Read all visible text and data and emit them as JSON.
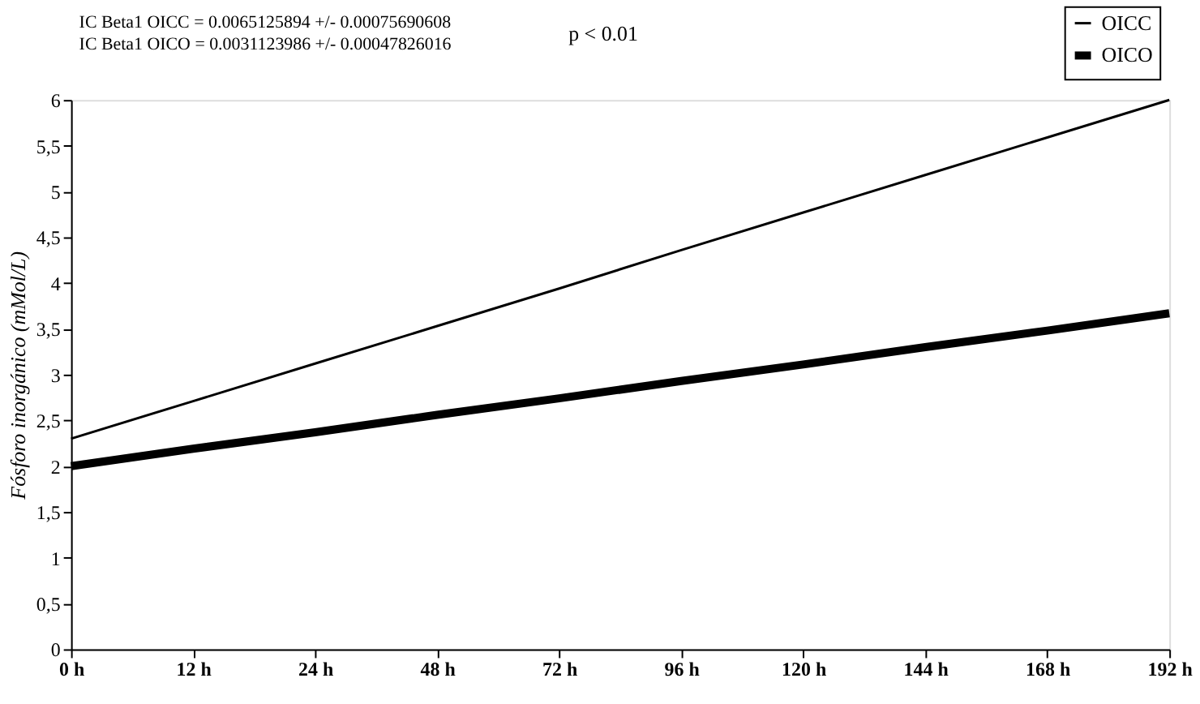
{
  "chart_data": {
    "type": "line",
    "categories": [
      "0 h",
      "12 h",
      "24 h",
      "48 h",
      "72 h",
      "96 h",
      "120 h",
      "144 h",
      "168 h",
      "192 h"
    ],
    "series": [
      {
        "name": "OICC",
        "color": "#000000",
        "values": [
          2.3,
          2.71,
          3.12,
          3.53,
          3.94,
          4.36,
          4.77,
          5.18,
          5.59,
          6.0
        ]
      },
      {
        "name": "OICO",
        "color": "#000000",
        "values": [
          2.0,
          2.19,
          2.37,
          2.56,
          2.74,
          2.93,
          3.11,
          3.3,
          3.48,
          3.67
        ]
      }
    ],
    "ylabel": "Fósforo inorgánico (mMol/L)",
    "ylim": [
      0,
      6
    ],
    "yticks": [
      0,
      {
        "value": 0.5,
        "label": "0,5"
      },
      1,
      {
        "value": 1.5,
        "label": "1,5"
      },
      2,
      {
        "value": 2.5,
        "label": "2,5"
      },
      3,
      {
        "value": 3.5,
        "label": "3,5"
      },
      4,
      {
        "value": 4.5,
        "label": "4,5"
      },
      5,
      {
        "value": 5.5,
        "label": "5,5"
      },
      6
    ],
    "annotations": [
      "IC Beta1 OICC = 0.0065125894 +/- 0.00075690608",
      "IC Beta1 OICO = 0.0031123986 +/- 0.00047826016",
      "p < 0.01"
    ],
    "grid": false,
    "legend": "top right",
    "marker": "none"
  }
}
